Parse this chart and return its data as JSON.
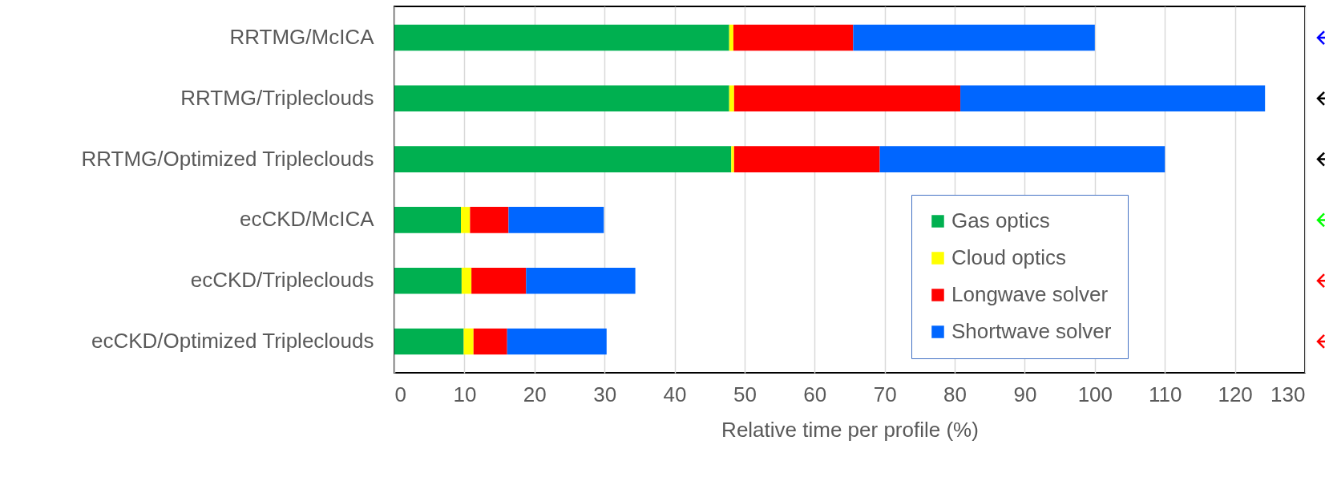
{
  "chart_data": {
    "type": "bar",
    "orientation": "horizontal",
    "stacked": true,
    "xlabel": "Relative time per profile (%)",
    "categories": [
      "RRTMG/McICA",
      "RRTMG/Tripleclouds",
      "RRTMG/Optimized Tripleclouds",
      "ecCKD/McICA",
      "ecCKD/Tripleclouds",
      "ecCKD/Optimized Tripleclouds"
    ],
    "series": [
      {
        "name": "Gas optics",
        "color": "#00b050",
        "values": [
          47.8,
          47.8,
          48.1,
          9.5,
          9.6,
          9.9
        ]
      },
      {
        "name": "Cloud optics",
        "color": "#ffff00",
        "values": [
          0.6,
          0.7,
          0.4,
          1.3,
          1.4,
          1.4
        ]
      },
      {
        "name": "Longwave solver",
        "color": "#ff0000",
        "values": [
          17.1,
          32.3,
          20.8,
          5.5,
          7.8,
          4.8
        ]
      },
      {
        "name": "Shortwave solver",
        "color": "#0066ff",
        "values": [
          34.5,
          43.5,
          40.7,
          13.6,
          15.6,
          14.2
        ]
      }
    ],
    "xlim": [
      0,
      130
    ],
    "xticks": [
      0,
      10,
      20,
      30,
      40,
      50,
      60,
      70,
      80,
      90,
      100,
      110,
      120,
      130
    ],
    "grid": "x",
    "legend": "bottom right"
  }
}
